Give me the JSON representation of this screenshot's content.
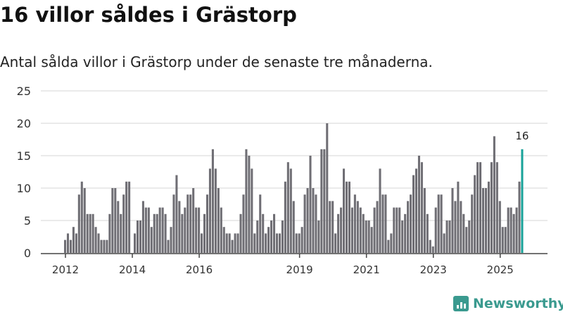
{
  "title": "16 villor såldes i Grästorp",
  "subtitle": "Antal sålda villor i Grästorp under de senaste tre månaderna.",
  "brand": "Newsworthy",
  "chart_data": {
    "type": "bar",
    "title": "16 villor såldes i Grästorp",
    "xlabel": "",
    "ylabel": "",
    "ylim": [
      0,
      25
    ],
    "yticks": [
      0,
      5,
      10,
      15,
      20,
      25
    ],
    "xticks": [
      {
        "label": "2012",
        "year": 2012
      },
      {
        "label": "2014",
        "year": 2014
      },
      {
        "label": "2016",
        "year": 2016
      },
      {
        "label": "2019",
        "year": 2019
      },
      {
        "label": "2021",
        "year": 2021
      },
      {
        "label": "2023",
        "year": 2023
      },
      {
        "label": "2025",
        "year": 2025
      }
    ],
    "start": "2012-01",
    "values": [
      2,
      3,
      2,
      4,
      3,
      9,
      11,
      10,
      6,
      6,
      6,
      4,
      3,
      2,
      2,
      2,
      6,
      10,
      10,
      8,
      6,
      9,
      11,
      11,
      0,
      3,
      5,
      5,
      8,
      7,
      7,
      4,
      6,
      6,
      7,
      7,
      6,
      2,
      4,
      9,
      12,
      8,
      6,
      7,
      9,
      9,
      10,
      7,
      7,
      3,
      6,
      9,
      13,
      16,
      13,
      10,
      7,
      4,
      3,
      3,
      2,
      3,
      3,
      6,
      9,
      16,
      15,
      13,
      3,
      5,
      9,
      6,
      3,
      4,
      5,
      6,
      3,
      3,
      5,
      11,
      14,
      13,
      8,
      3,
      3,
      4,
      9,
      10,
      15,
      10,
      9,
      5,
      16,
      16,
      20,
      8,
      8,
      3,
      6,
      7,
      13,
      11,
      11,
      7,
      9,
      8,
      7,
      6,
      5,
      5,
      4,
      7,
      8,
      13,
      9,
      9,
      2,
      3,
      7,
      7,
      7,
      5,
      6,
      8,
      9,
      12,
      13,
      15,
      14,
      10,
      6,
      2,
      1,
      7,
      9,
      9,
      3,
      5,
      5,
      10,
      8,
      11,
      8,
      6,
      4,
      5,
      9,
      12,
      14,
      14,
      10,
      10,
      11,
      14,
      18,
      14,
      8,
      4,
      4,
      7,
      7,
      6,
      7,
      11,
      16
    ],
    "highlight_label": "16",
    "colors": {
      "bar": "#6f6e74",
      "highlight": "#1aa39a",
      "grid": "#e3e3e3"
    }
  }
}
